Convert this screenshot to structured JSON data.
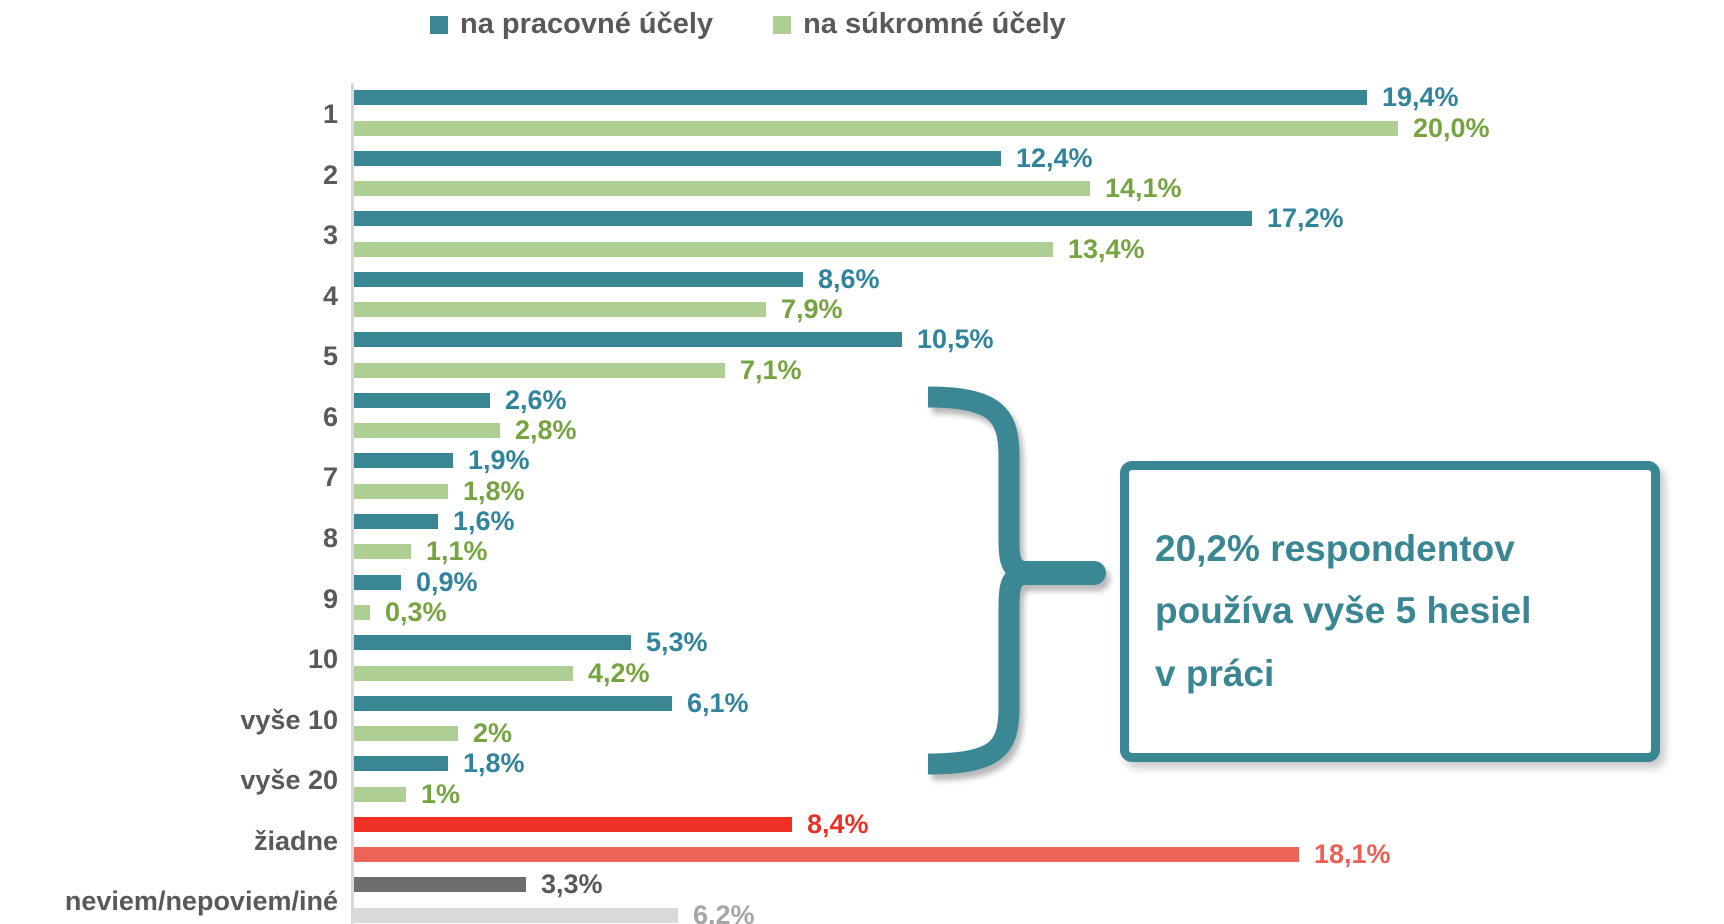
{
  "legend": [
    {
      "label": "na pracovné účely",
      "color": "#3a8793"
    },
    {
      "label": "na súkromné účely",
      "color": "#afce94"
    }
  ],
  "colors": {
    "work_bar": "#3a8793",
    "work_label": "#31849b",
    "private_bar": "#afce94",
    "private_label": "#76a440",
    "none_work_bar": "#ee3124",
    "none_work_label": "#e5332a",
    "none_private_bar": "#ec6358",
    "none_private_label": "#ed5f55",
    "dontknow_work_bar": "#6e6e6e",
    "dontknow_work_label": "#595959",
    "dontknow_private_bar": "#d9d9d9",
    "dontknow_private_label": "#a6a6a6",
    "category_label": "#595959",
    "axis_line": "#d9d9d9",
    "annotation": "#3a8793"
  },
  "chart_data": {
    "type": "bar",
    "orientation": "horizontal",
    "title": "",
    "xlabel": "",
    "ylabel": "",
    "xlim": [
      0,
      20.5
    ],
    "grid": false,
    "legend_position": "top-center",
    "categories": [
      "1",
      "2",
      "3",
      "4",
      "5",
      "6",
      "7",
      "8",
      "9",
      "10",
      "vyše 10",
      "vyše 20",
      "žiadne",
      "neviem/nepoviem/iné"
    ],
    "series": [
      {
        "name": "na pracovné účely",
        "values": [
          19.4,
          12.4,
          17.2,
          8.6,
          10.5,
          2.6,
          1.9,
          1.6,
          0.9,
          5.3,
          6.1,
          1.8,
          8.4,
          3.3
        ]
      },
      {
        "name": "na súkromné účely",
        "values": [
          20.0,
          14.1,
          13.4,
          7.9,
          7.1,
          2.8,
          1.8,
          1.1,
          0.3,
          4.2,
          2.0,
          1.0,
          18.1,
          6.2
        ]
      }
    ],
    "rows": [
      {
        "category": "1",
        "work_label": "19,4%",
        "private_label": "20,0%",
        "style": "default"
      },
      {
        "category": "2",
        "work_label": "12,4%",
        "private_label": "14,1%",
        "style": "default"
      },
      {
        "category": "3",
        "work_label": "17,2%",
        "private_label": "13,4%",
        "style": "default"
      },
      {
        "category": "4",
        "work_label": "8,6%",
        "private_label": "7,9%",
        "style": "default"
      },
      {
        "category": "5",
        "work_label": "10,5%",
        "private_label": "7,1%",
        "style": "default"
      },
      {
        "category": "6",
        "work_label": "2,6%",
        "private_label": "2,8%",
        "style": "default"
      },
      {
        "category": "7",
        "work_label": "1,9%",
        "private_label": "1,8%",
        "style": "default"
      },
      {
        "category": "8",
        "work_label": "1,6%",
        "private_label": "1,1%",
        "style": "default"
      },
      {
        "category": "9",
        "work_label": "0,9%",
        "private_label": "0,3%",
        "style": "default"
      },
      {
        "category": "10",
        "work_label": "5,3%",
        "private_label": "4,2%",
        "style": "default"
      },
      {
        "category": "vyše 10",
        "work_label": "6,1%",
        "private_label": "2%",
        "style": "default"
      },
      {
        "category": "vyše 20",
        "work_label": "1,8%",
        "private_label": "1%",
        "style": "default"
      },
      {
        "category": "žiadne",
        "work_label": "8,4%",
        "private_label": "18,1%",
        "style": "none"
      },
      {
        "category": "neviem/nepoviem/iné",
        "work_label": "3,3%",
        "private_label": "6,2%",
        "style": "dontknow"
      }
    ]
  },
  "annotation": {
    "callout_text": "20,2% respondentov používa vyše 5 hesiel v práci",
    "callout_lines": [
      "20,2% respondentov",
      "používa vyše 5 hesiel",
      "v práci"
    ],
    "brace_covers": "rows 6 through vyše 20 (work series)"
  }
}
